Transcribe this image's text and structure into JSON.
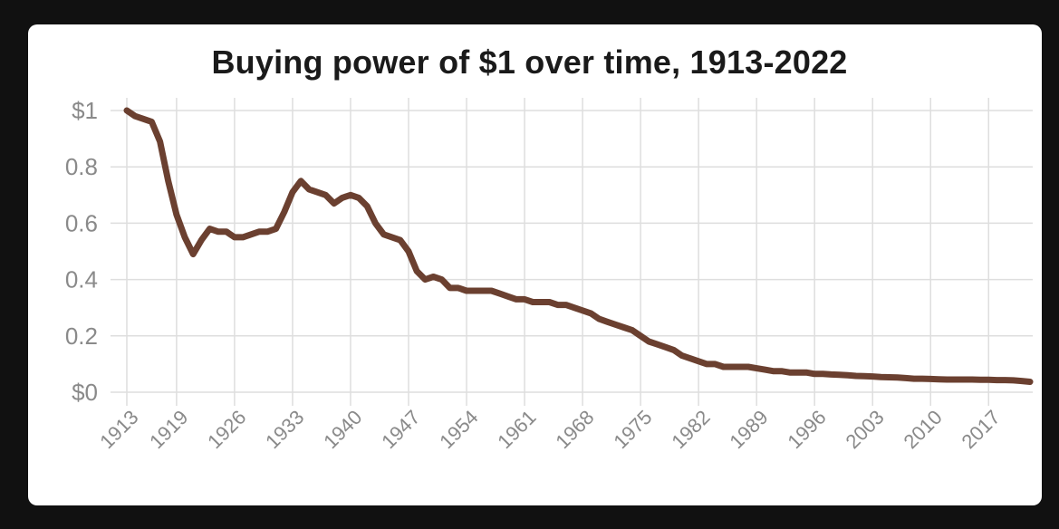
{
  "chart_data": {
    "type": "line",
    "title": "Buying power of $1 over time, 1913-2022",
    "xlabel": "",
    "ylabel": "",
    "xlim": [
      1913,
      2022
    ],
    "ylim": [
      0,
      1
    ],
    "grid": true,
    "line_color": "#6b4030",
    "y_ticks": [
      {
        "value": 1,
        "label": "$1"
      },
      {
        "value": 0.8,
        "label": "0.8"
      },
      {
        "value": 0.6,
        "label": "0.6"
      },
      {
        "value": 0.4,
        "label": "0.4"
      },
      {
        "value": 0.2,
        "label": "0.2"
      },
      {
        "value": 0,
        "label": "$0"
      }
    ],
    "x_ticks": [
      1913,
      1919,
      1926,
      1933,
      1940,
      1947,
      1954,
      1961,
      1968,
      1975,
      1982,
      1989,
      1996,
      2003,
      2010,
      2017
    ],
    "series": [
      {
        "x": [
          1913,
          1914,
          1915,
          1916,
          1917,
          1918,
          1919,
          1920,
          1921,
          1922,
          1923,
          1924,
          1925,
          1926,
          1927,
          1928,
          1929,
          1930,
          1931,
          1932,
          1933,
          1934,
          1935,
          1936,
          1937,
          1938,
          1939,
          1940,
          1941,
          1942,
          1943,
          1944,
          1945,
          1946,
          1947,
          1948,
          1949,
          1950,
          1951,
          1952,
          1953,
          1954,
          1955,
          1956,
          1957,
          1958,
          1959,
          1960,
          1961,
          1962,
          1963,
          1964,
          1965,
          1966,
          1967,
          1968,
          1969,
          1970,
          1971,
          1972,
          1973,
          1974,
          1975,
          1976,
          1977,
          1978,
          1979,
          1980,
          1981,
          1982,
          1983,
          1984,
          1985,
          1986,
          1987,
          1988,
          1989,
          1990,
          1991,
          1992,
          1993,
          1994,
          1995,
          1996,
          1997,
          1998,
          1999,
          2000,
          2001,
          2002,
          2003,
          2004,
          2005,
          2006,
          2007,
          2008,
          2009,
          2010,
          2011,
          2012,
          2013,
          2014,
          2015,
          2016,
          2017,
          2018,
          2019,
          2020,
          2021,
          2022
        ],
        "values": [
          1.0,
          0.98,
          0.97,
          0.96,
          0.89,
          0.75,
          0.63,
          0.55,
          0.49,
          0.54,
          0.58,
          0.57,
          0.57,
          0.55,
          0.55,
          0.56,
          0.57,
          0.57,
          0.58,
          0.64,
          0.71,
          0.75,
          0.72,
          0.71,
          0.7,
          0.67,
          0.69,
          0.7,
          0.69,
          0.66,
          0.6,
          0.56,
          0.55,
          0.54,
          0.5,
          0.43,
          0.4,
          0.41,
          0.4,
          0.37,
          0.37,
          0.36,
          0.36,
          0.36,
          0.36,
          0.35,
          0.34,
          0.33,
          0.33,
          0.32,
          0.32,
          0.32,
          0.31,
          0.31,
          0.3,
          0.29,
          0.28,
          0.26,
          0.25,
          0.24,
          0.23,
          0.22,
          0.2,
          0.18,
          0.17,
          0.16,
          0.15,
          0.13,
          0.12,
          0.11,
          0.1,
          0.1,
          0.09,
          0.09,
          0.09,
          0.09,
          0.085,
          0.08,
          0.075,
          0.075,
          0.07,
          0.07,
          0.07,
          0.065,
          0.065,
          0.063,
          0.062,
          0.06,
          0.058,
          0.057,
          0.056,
          0.054,
          0.053,
          0.052,
          0.05,
          0.048,
          0.048,
          0.047,
          0.046,
          0.045,
          0.045,
          0.045,
          0.045,
          0.044,
          0.044,
          0.043,
          0.043,
          0.042,
          0.04,
          0.037
        ]
      }
    ]
  }
}
